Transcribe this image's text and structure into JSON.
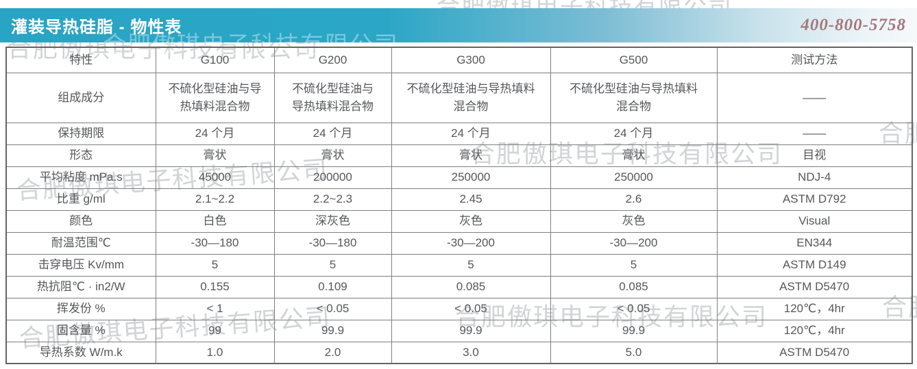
{
  "header": {
    "title": "灌装导热硅脂 - 物性表",
    "phone": "400-800-5758"
  },
  "watermark": {
    "text": "合肥傲琪电子科技有限公司"
  },
  "table": {
    "columns": [
      "特性",
      "G100",
      "G200",
      "G300",
      "G500",
      "测试方法"
    ],
    "rows": [
      {
        "label": "组成成分",
        "values": [
          "不硫化型硅油与导\n热填料混合物",
          "不硫化型硅油与\n导热填料混合物",
          "不硫化型硅油与导热填料\n混合物",
          "不硫化型硅油与导热填料\n混合物"
        ],
        "method": "——"
      },
      {
        "label": "保持期限",
        "values": [
          "24 个月",
          "24 个月",
          "24 个月",
          "24 个月"
        ],
        "method": "——"
      },
      {
        "label": "形态",
        "values": [
          "膏状",
          "膏状",
          "膏状",
          "膏状"
        ],
        "method": "目视"
      },
      {
        "label": "平均粘度 mPa.s",
        "values": [
          "45000",
          "200000",
          "250000",
          "250000"
        ],
        "method": "NDJ-4"
      },
      {
        "label": "比重 g/ml",
        "values": [
          "2.1~2.2",
          "2.2~2.3",
          "2.45",
          "2.6"
        ],
        "method": "ASTM D792"
      },
      {
        "label": "颜色",
        "values": [
          "白色",
          "深灰色",
          "灰色",
          "灰色"
        ],
        "method": "Visual"
      },
      {
        "label": "耐温范围℃",
        "values": [
          "-30—180",
          "-30—180",
          "-30—200",
          "-30—200"
        ],
        "method": "EN344"
      },
      {
        "label": "击穿电压 Kv/mm",
        "values": [
          "5",
          "5",
          "5",
          "5"
        ],
        "method": "ASTM D149"
      },
      {
        "label": "热抗阻℃ · in2/W",
        "values": [
          "0.155",
          "0.109",
          "0.085",
          "0.085"
        ],
        "method": "ASTM D5470"
      },
      {
        "label": "挥发份 %",
        "values": [
          "< 1",
          "< 0.05",
          "< 0.05",
          "< 0.05"
        ],
        "method": "120℃，4hr"
      },
      {
        "label": "固含量 %",
        "values": [
          "99",
          "99.9",
          "99.9",
          "99.9"
        ],
        "method": "120℃，4hr"
      },
      {
        "label": "导热系数 W/m.k",
        "values": [
          "1.0",
          "2.0",
          "3.0",
          "5.0"
        ],
        "method": "ASTM D5470"
      }
    ]
  }
}
